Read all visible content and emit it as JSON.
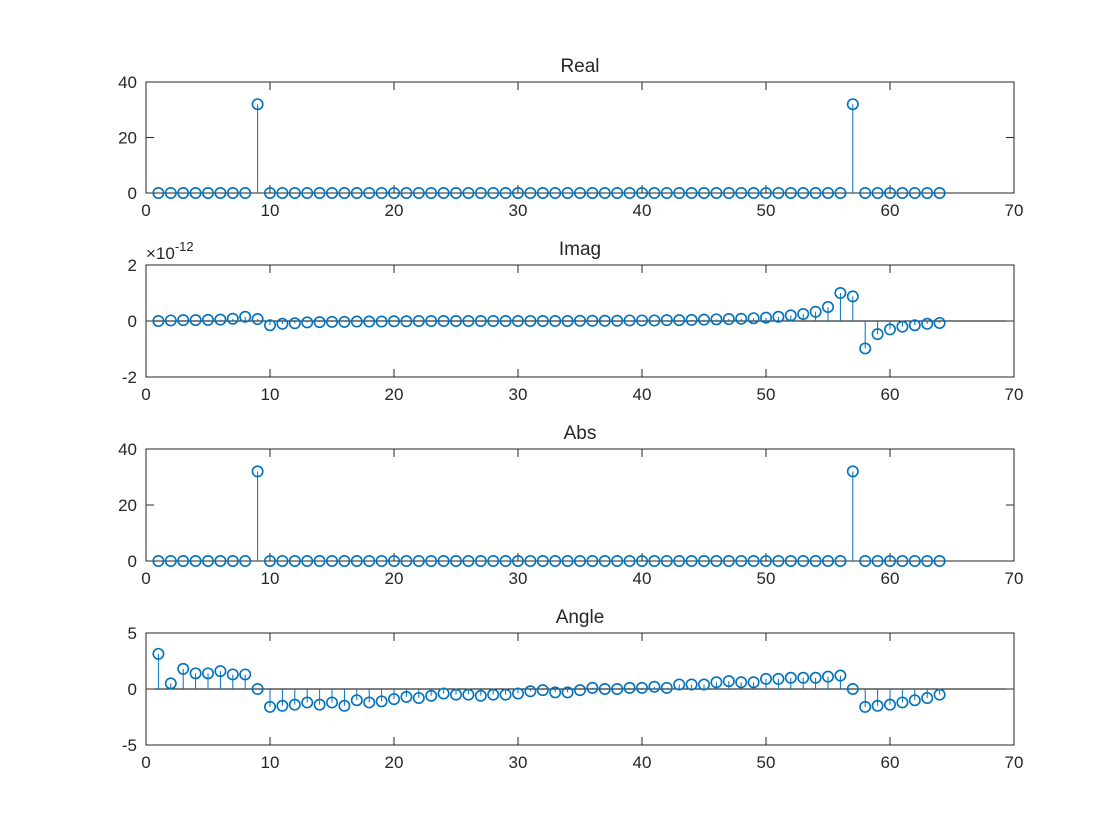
{
  "chart_data": [
    {
      "type": "stem",
      "title": "Real",
      "xlim": [
        0,
        70
      ],
      "ylim": [
        0,
        40
      ],
      "xticks": [
        0,
        10,
        20,
        30,
        40,
        50,
        60,
        70
      ],
      "yticks": [
        0,
        20,
        40
      ],
      "x": [
        1,
        2,
        3,
        4,
        5,
        6,
        7,
        8,
        9,
        10,
        11,
        12,
        13,
        14,
        15,
        16,
        17,
        18,
        19,
        20,
        21,
        22,
        23,
        24,
        25,
        26,
        27,
        28,
        29,
        30,
        31,
        32,
        33,
        34,
        35,
        36,
        37,
        38,
        39,
        40,
        41,
        42,
        43,
        44,
        45,
        46,
        47,
        48,
        49,
        50,
        51,
        52,
        53,
        54,
        55,
        56,
        57,
        58,
        59,
        60,
        61,
        62,
        63,
        64
      ],
      "values": [
        0,
        0,
        0,
        0,
        0,
        0,
        0,
        0,
        32,
        0,
        0,
        0,
        0,
        0,
        0,
        0,
        0,
        0,
        0,
        0,
        0,
        0,
        0,
        0,
        0,
        0,
        0,
        0,
        0,
        0,
        0,
        0,
        0,
        0,
        0,
        0,
        0,
        0,
        0,
        0,
        0,
        0,
        0,
        0,
        0,
        0,
        0,
        0,
        0,
        0,
        0,
        0,
        0,
        0,
        0,
        0,
        32,
        0,
        0,
        0,
        0,
        0,
        0,
        0
      ]
    },
    {
      "type": "stem",
      "title": "Imag",
      "exponent": "-12",
      "xlim": [
        0,
        70
      ],
      "ylim": [
        -2,
        2
      ],
      "xticks": [
        0,
        10,
        20,
        30,
        40,
        50,
        60,
        70
      ],
      "yticks": [
        -2,
        0,
        2
      ],
      "x": [
        1,
        2,
        3,
        4,
        5,
        6,
        7,
        8,
        9,
        10,
        11,
        12,
        13,
        14,
        15,
        16,
        17,
        18,
        19,
        20,
        21,
        22,
        23,
        24,
        25,
        26,
        27,
        28,
        29,
        30,
        31,
        32,
        33,
        34,
        35,
        36,
        37,
        38,
        39,
        40,
        41,
        42,
        43,
        44,
        45,
        46,
        47,
        48,
        49,
        50,
        51,
        52,
        53,
        54,
        55,
        56,
        57,
        58,
        59,
        60,
        61,
        62,
        63,
        64
      ],
      "values": [
        0,
        0.02,
        0.03,
        0.03,
        0.04,
        0.05,
        0.08,
        0.15,
        0.07,
        -0.15,
        -0.1,
        -0.08,
        -0.05,
        -0.04,
        -0.03,
        -0.03,
        -0.02,
        -0.02,
        -0.02,
        -0.01,
        -0.01,
        0,
        0,
        0,
        0,
        0,
        0,
        0,
        0,
        0,
        0,
        0,
        0,
        0,
        0.01,
        0.01,
        0.01,
        0.01,
        0.02,
        0.02,
        0.02,
        0.03,
        0.03,
        0.04,
        0.05,
        0.06,
        0.07,
        0.08,
        0.1,
        0.12,
        0.15,
        0.2,
        0.25,
        0.33,
        0.5,
        1.0,
        0.88,
        -0.98,
        -0.47,
        -0.3,
        -0.2,
        -0.15,
        -0.1,
        -0.07
      ]
    },
    {
      "type": "stem",
      "title": "Abs",
      "xlim": [
        0,
        70
      ],
      "ylim": [
        0,
        40
      ],
      "xticks": [
        0,
        10,
        20,
        30,
        40,
        50,
        60,
        70
      ],
      "yticks": [
        0,
        20,
        40
      ],
      "x": [
        1,
        2,
        3,
        4,
        5,
        6,
        7,
        8,
        9,
        10,
        11,
        12,
        13,
        14,
        15,
        16,
        17,
        18,
        19,
        20,
        21,
        22,
        23,
        24,
        25,
        26,
        27,
        28,
        29,
        30,
        31,
        32,
        33,
        34,
        35,
        36,
        37,
        38,
        39,
        40,
        41,
        42,
        43,
        44,
        45,
        46,
        47,
        48,
        49,
        50,
        51,
        52,
        53,
        54,
        55,
        56,
        57,
        58,
        59,
        60,
        61,
        62,
        63,
        64
      ],
      "values": [
        0,
        0,
        0,
        0,
        0,
        0,
        0,
        0,
        32,
        0,
        0,
        0,
        0,
        0,
        0,
        0,
        0,
        0,
        0,
        0,
        0,
        0,
        0,
        0,
        0,
        0,
        0,
        0,
        0,
        0,
        0,
        0,
        0,
        0,
        0,
        0,
        0,
        0,
        0,
        0,
        0,
        0,
        0,
        0,
        0,
        0,
        0,
        0,
        0,
        0,
        0,
        0,
        0,
        0,
        0,
        0,
        32,
        0,
        0,
        0,
        0,
        0,
        0,
        0
      ]
    },
    {
      "type": "stem",
      "title": "Angle",
      "xlim": [
        0,
        70
      ],
      "ylim": [
        -5,
        5
      ],
      "xticks": [
        0,
        10,
        20,
        30,
        40,
        50,
        60,
        70
      ],
      "yticks": [
        -5,
        0,
        5
      ],
      "x": [
        1,
        2,
        3,
        4,
        5,
        6,
        7,
        8,
        9,
        10,
        11,
        12,
        13,
        14,
        15,
        16,
        17,
        18,
        19,
        20,
        21,
        22,
        23,
        24,
        25,
        26,
        27,
        28,
        29,
        30,
        31,
        32,
        33,
        34,
        35,
        36,
        37,
        38,
        39,
        40,
        41,
        42,
        43,
        44,
        45,
        46,
        47,
        48,
        49,
        50,
        51,
        52,
        53,
        54,
        55,
        56,
        57,
        58,
        59,
        60,
        61,
        62,
        63,
        64
      ],
      "values": [
        3.14,
        0.5,
        1.8,
        1.4,
        1.4,
        1.6,
        1.3,
        1.3,
        0,
        -1.6,
        -1.5,
        -1.4,
        -1.2,
        -1.4,
        -1.2,
        -1.5,
        -1.0,
        -1.2,
        -1.1,
        -0.9,
        -0.7,
        -0.8,
        -0.6,
        -0.4,
        -0.5,
        -0.5,
        -0.6,
        -0.5,
        -0.5,
        -0.4,
        -0.2,
        -0.1,
        -0.3,
        -0.3,
        -0.1,
        0.1,
        0.0,
        0.0,
        0.1,
        0.1,
        0.2,
        0.1,
        0.4,
        0.4,
        0.4,
        0.6,
        0.7,
        0.6,
        0.6,
        0.9,
        0.9,
        1.0,
        1.0,
        1.0,
        1.1,
        1.2,
        0,
        -1.6,
        -1.5,
        -1.4,
        -1.2,
        -1.0,
        -0.8,
        -0.5
      ]
    }
  ],
  "style": {
    "stem_color": "#0072BD",
    "axis_color": "#262626",
    "background": "#ffffff"
  }
}
